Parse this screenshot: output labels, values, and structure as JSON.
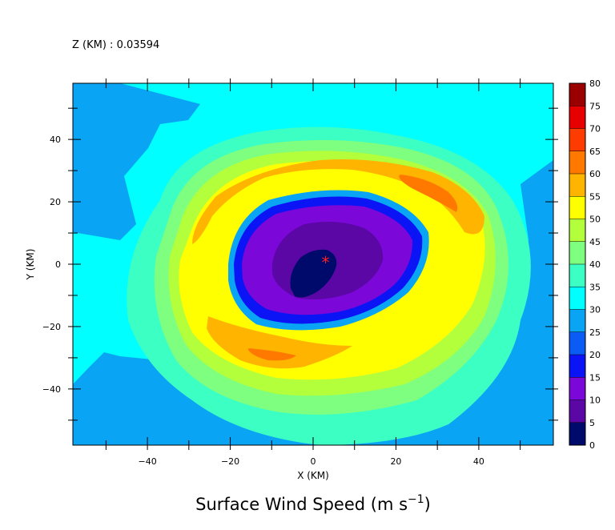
{
  "chart_data": {
    "type": "heatmap",
    "subtype": "filled-contour",
    "header": "Z (KM) : 0.03594",
    "title_main": "Surface Wind Speed (m s",
    "title_sup": "−1",
    "title_close": ")",
    "xlabel": "X (KM)",
    "ylabel": "Y (KM)",
    "xlim": [
      -58,
      58
    ],
    "ylim": [
      -58,
      58
    ],
    "x_ticks": [
      "−40",
      "−20",
      "0",
      "20",
      "40"
    ],
    "y_ticks": [
      "−40",
      "−20",
      "0",
      "20",
      "40"
    ],
    "x_tick_values": [
      -40,
      -20,
      0,
      20,
      40
    ],
    "y_tick_values": [
      -40,
      -20,
      0,
      20,
      40
    ],
    "colorbar": {
      "levels": [
        0,
        5,
        10,
        15,
        20,
        25,
        30,
        35,
        40,
        45,
        50,
        55,
        60,
        65,
        70,
        75,
        80
      ],
      "level_labels": [
        "0",
        "5",
        "10",
        "15",
        "20",
        "25",
        "30",
        "35",
        "40",
        "45",
        "50",
        "55",
        "60",
        "65",
        "70",
        "75",
        "80"
      ],
      "colors": [
        "#000a6b",
        "#5b07a6",
        "#7b07d9",
        "#0a14f5",
        "#0a5cf5",
        "#0aa4f5",
        "#00ffff",
        "#3cffc4",
        "#7fff7f",
        "#b4ff3c",
        "#ffff00",
        "#ffb400",
        "#ff7800",
        "#ff3c00",
        "#e60000",
        "#9b0000"
      ]
    },
    "center_marker": {
      "x": 3,
      "y": 1,
      "symbol": "*",
      "color": "#ff2020"
    },
    "field_description": "Hurricane-like vortex: calm eye (<10 m/s) near center, eyewall/ring of 15-25 m/s at ~20 km, wind maximum 50-60 m/s in spiral bands at NE and SW (~25-30 km radius), decaying outward to 20-30 m/s at domain edges."
  }
}
